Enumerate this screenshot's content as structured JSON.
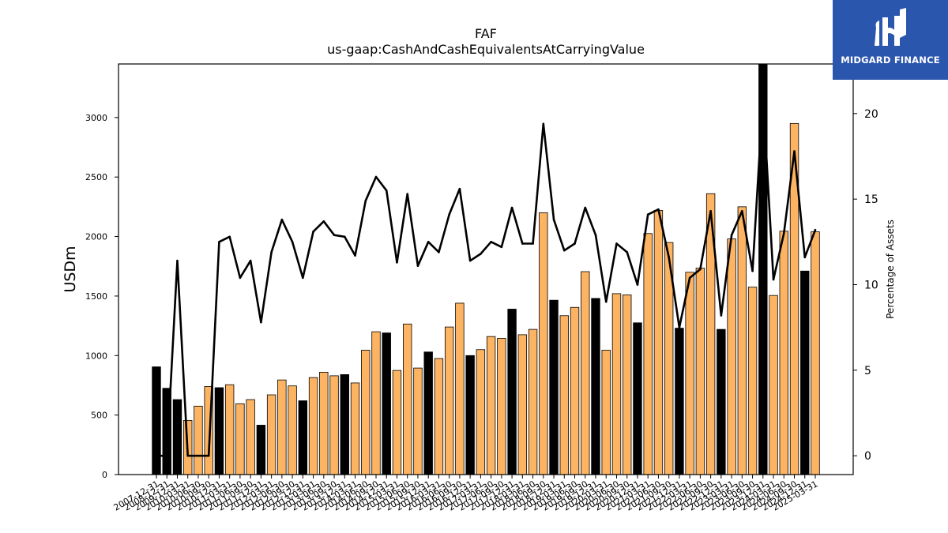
{
  "chart_data": {
    "type": "bar",
    "title": "FAF",
    "subtitle": "us-gaap:CashAndCashEquivalentsAtCarryingValue",
    "ylabel": "USDm",
    "y2label": "Percentage of Assets",
    "ylim": [
      0,
      3450
    ],
    "y2lim": [
      -1.1,
      22.9
    ],
    "yticks": [
      0,
      500,
      1000,
      1500,
      2000,
      2500,
      3000
    ],
    "y2ticks": [
      0,
      5,
      10,
      15,
      20
    ],
    "categories": [
      "2007-12-31",
      "2008-12-31",
      "2009-12-31",
      "2010-03-31",
      "2010-06-30",
      "2010-09-30",
      "2010-12-31",
      "2011-03-31",
      "2011-06-30",
      "2011-09-30",
      "2011-12-31",
      "2012-03-31",
      "2012-06-30",
      "2012-09-30",
      "2012-12-31",
      "2013-03-31",
      "2013-06-30",
      "2013-09-30",
      "2013-12-31",
      "2014-03-31",
      "2014-06-30",
      "2014-09-30",
      "2014-12-31",
      "2015-03-31",
      "2015-06-30",
      "2015-09-30",
      "2015-12-31",
      "2016-03-31",
      "2016-06-30",
      "2016-09-30",
      "2016-12-31",
      "2017-03-31",
      "2017-06-30",
      "2017-09-30",
      "2017-12-31",
      "2018-03-31",
      "2018-06-30",
      "2018-09-30",
      "2018-12-31",
      "2019-03-31",
      "2019-06-30",
      "2019-09-30",
      "2019-12-31",
      "2020-03-31",
      "2020-06-30",
      "2020-09-30",
      "2020-12-31",
      "2021-03-31",
      "2021-06-30",
      "2021-09-30",
      "2021-12-31",
      "2022-03-31",
      "2022-06-30",
      "2022-09-30",
      "2022-12-31",
      "2023-03-31",
      "2023-06-30",
      "2023-09-30",
      "2023-12-31",
      "2024-03-31",
      "2024-06-30",
      "2024-09-30",
      "2024-12-31",
      "2025-03-31"
    ],
    "series": [
      {
        "kind": "bar",
        "values": [
          905,
          725,
          630,
          455,
          575,
          740,
          730,
          755,
          595,
          630,
          415,
          670,
          795,
          745,
          620,
          815,
          860,
          830,
          840,
          770,
          1045,
          1200,
          1190,
          875,
          1265,
          895,
          1030,
          975,
          1240,
          1440,
          1000,
          1050,
          1160,
          1145,
          1390,
          1175,
          1220,
          2200,
          1465,
          1335,
          1405,
          1705,
          1480,
          1045,
          1520,
          1510,
          1275,
          2025,
          2220,
          1950,
          1230,
          1700,
          1735,
          2360,
          1220,
          1980,
          2250,
          1575,
          3450,
          1505,
          2045,
          2950,
          1710,
          2040
        ],
        "colors": [
          "black",
          "black",
          "black",
          "orange",
          "orange",
          "orange",
          "black",
          "orange",
          "orange",
          "orange",
          "black",
          "orange",
          "orange",
          "orange",
          "black",
          "orange",
          "orange",
          "orange",
          "black",
          "orange",
          "orange",
          "orange",
          "black",
          "orange",
          "orange",
          "orange",
          "black",
          "orange",
          "orange",
          "orange",
          "black",
          "orange",
          "orange",
          "orange",
          "black",
          "orange",
          "orange",
          "orange",
          "black",
          "orange",
          "orange",
          "orange",
          "black",
          "orange",
          "orange",
          "orange",
          "black",
          "orange",
          "orange",
          "orange",
          "black",
          "orange",
          "orange",
          "orange",
          "black",
          "orange",
          "orange",
          "orange",
          "black",
          "orange",
          "orange",
          "orange",
          "black",
          "orange"
        ]
      },
      {
        "kind": "line",
        "axis": "right",
        "values": [
          0,
          0,
          11.4,
          0,
          0,
          0,
          12.5,
          12.8,
          10.4,
          11.4,
          7.8,
          11.9,
          13.8,
          12.5,
          10.4,
          13.1,
          13.7,
          12.9,
          12.8,
          11.7,
          14.9,
          16.3,
          15.5,
          11.3,
          15.3,
          11.1,
          12.5,
          11.9,
          14.1,
          15.6,
          11.4,
          11.8,
          12.5,
          12.2,
          14.5,
          12.4,
          12.4,
          19.4,
          13.8,
          12.0,
          12.4,
          14.5,
          12.9,
          9.0,
          12.4,
          11.9,
          10.0,
          14.1,
          14.4,
          11.6,
          7.5,
          10.4,
          10.9,
          14.3,
          8.2,
          12.9,
          14.3,
          10.8,
          21.0,
          10.3,
          13.0,
          17.8,
          11.6,
          13.2
        ]
      }
    ],
    "colors": {
      "orange": "#fdb462",
      "black": "#000000",
      "line": "#000000",
      "logo_bg": "#2b56ad",
      "logo_fg": "#ffffff"
    },
    "grid": false
  },
  "logo": {
    "text": "MIDGARD FINANCE",
    "icon": "midgard-logo-icon"
  }
}
